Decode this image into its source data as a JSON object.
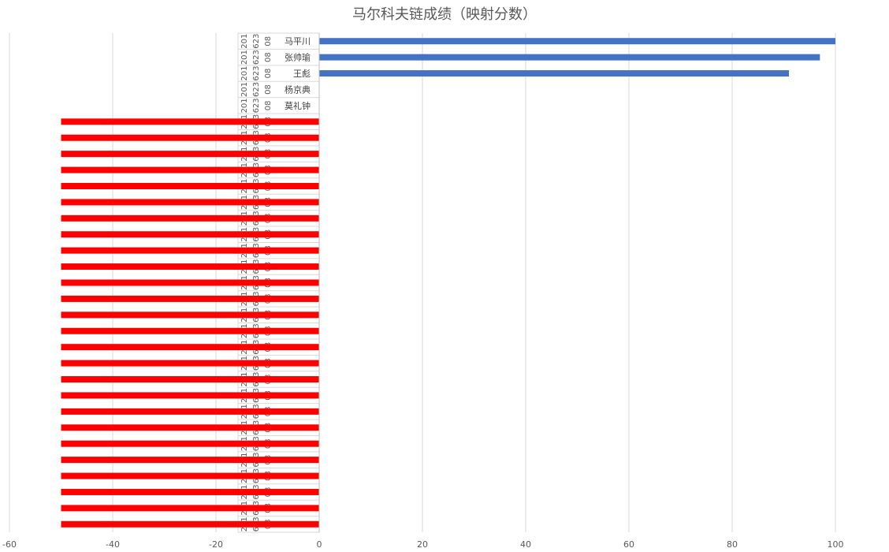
{
  "chart_data": {
    "type": "bar",
    "orientation": "horizontal",
    "title": "马尔科夫链成绩（映射分数）",
    "xlabel": "",
    "ylabel": "",
    "xlim": [
      -60,
      100
    ],
    "xticks": [
      "-60",
      "-40",
      "-20",
      "0",
      "20",
      "40",
      "60",
      "80",
      "100"
    ],
    "grid": true,
    "legend": "none",
    "id_rows": [
      "201",
      "623",
      "08"
    ],
    "categories": [
      "马平川",
      "张帅瑜",
      "王彪",
      "杨京典",
      "莫礼钟",
      "",
      "",
      "",
      "",
      "",
      "",
      "",
      "",
      "",
      "",
      "",
      "",
      "",
      "",
      "",
      "",
      "",
      "",
      "",
      "",
      "",
      "",
      "",
      "",
      "",
      ""
    ],
    "values": [
      100,
      97,
      91,
      0,
      0,
      -50,
      -50,
      -50,
      -50,
      -50,
      -50,
      -50,
      -50,
      -50,
      -50,
      -50,
      -50,
      -50,
      -50,
      -50,
      -50,
      -50,
      -50,
      -50,
      -50,
      -50,
      -50,
      -50,
      -50,
      -50,
      -50
    ],
    "colors": {
      "positive": "#4472C4",
      "negative": "#FF0000",
      "grid": "#D9D9D9",
      "text": "#595959"
    }
  }
}
